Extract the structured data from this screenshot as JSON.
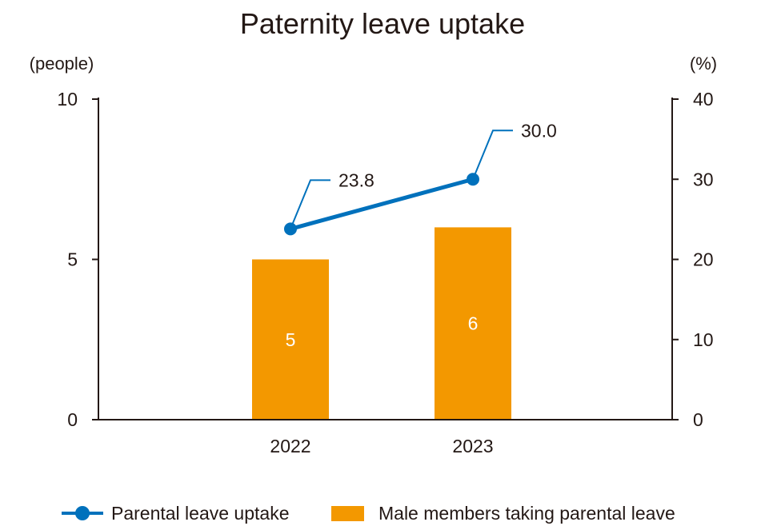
{
  "chart_data": {
    "type": "bar",
    "title": "Paternity leave uptake",
    "categories": [
      "2022",
      "2023"
    ],
    "left_axis": {
      "unit_label": "(people)",
      "range": [
        0,
        10
      ],
      "ticks": [
        "0",
        "5",
        "10"
      ]
    },
    "right_axis": {
      "unit_label": "(%)",
      "range": [
        0,
        40
      ],
      "ticks": [
        "0",
        "10",
        "20",
        "30",
        "40"
      ]
    },
    "grid": false,
    "legend_position": "bottom",
    "series": [
      {
        "name": "Male members taking parental leave",
        "kind": "bar",
        "axis": "left",
        "color": "#f39800",
        "values": [
          5,
          6
        ],
        "labels": [
          "5",
          "6"
        ]
      },
      {
        "name": "Parental leave uptake",
        "kind": "line",
        "axis": "right",
        "color": "#0071bc",
        "values": [
          23.8,
          30.0
        ],
        "labels": [
          "23.8",
          "30.0"
        ]
      }
    ]
  }
}
